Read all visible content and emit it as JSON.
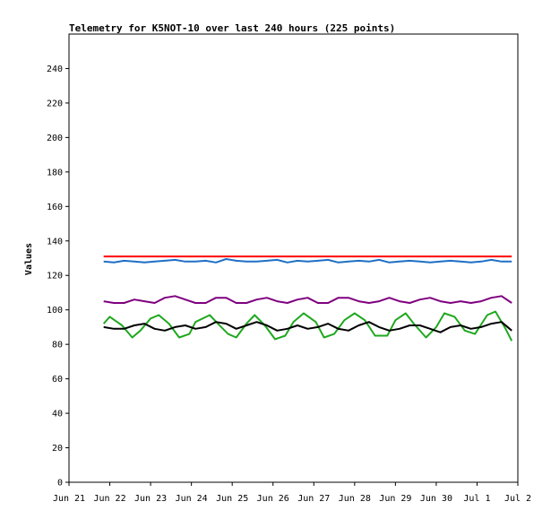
{
  "chart_data": {
    "type": "line",
    "title": "Telemetry for K5NOT-10 over last 240 hours (225 points)",
    "xlabel": "",
    "ylabel": "Values",
    "ylim": [
      0,
      260
    ],
    "yticks": [
      0,
      20,
      40,
      60,
      80,
      100,
      120,
      140,
      160,
      180,
      200,
      220,
      240
    ],
    "xlim": [
      0,
      11
    ],
    "xticks": [
      "Jun 21",
      "Jun 22",
      "Jun 23",
      "Jun 24",
      "Jun 25",
      "Jun 26",
      "Jun 27",
      "Jun 28",
      "Jun 29",
      "Jun 30",
      "Jul 1",
      "Jul 2"
    ],
    "grid": false,
    "legend": "none",
    "colors": {
      "red": "#ff0000",
      "blue": "#1f6fc5",
      "purple": "#7f007f",
      "green": "#1fa81f",
      "black": "#000000"
    },
    "series": [
      {
        "color": "#ff0000",
        "x": [
          0.85,
          1.5,
          2.2,
          2.6,
          3.0,
          3.5,
          4.0,
          4.6,
          5.0,
          5.5,
          6.0,
          6.5,
          7.0,
          7.5,
          8.0,
          8.5,
          9.0,
          9.5,
          10.0,
          10.5,
          10.85
        ],
        "values": [
          131,
          131,
          131,
          131,
          131,
          131,
          131,
          131,
          131,
          131,
          131,
          131,
          131,
          131,
          131,
          131,
          131,
          131,
          131,
          131,
          131
        ]
      },
      {
        "color": "#1f6fc5",
        "x": [
          0.85,
          1.1,
          1.35,
          1.6,
          1.85,
          2.1,
          2.35,
          2.6,
          2.85,
          3.1,
          3.35,
          3.6,
          3.85,
          4.1,
          4.35,
          4.6,
          4.85,
          5.1,
          5.35,
          5.6,
          5.85,
          6.1,
          6.35,
          6.6,
          6.85,
          7.1,
          7.35,
          7.6,
          7.85,
          8.1,
          8.35,
          8.6,
          8.85,
          9.1,
          9.35,
          9.6,
          9.85,
          10.1,
          10.35,
          10.6,
          10.85
        ],
        "values": [
          128,
          127.5,
          128.5,
          128,
          127.5,
          128,
          128.5,
          129,
          128,
          128,
          128.5,
          127.5,
          129.5,
          128.5,
          128,
          128,
          128.5,
          129,
          127.5,
          128.5,
          128,
          128.5,
          129,
          127.5,
          128,
          128.5,
          128,
          129,
          127.5,
          128,
          128.5,
          128,
          127.5,
          128,
          128.5,
          128,
          127.5,
          128,
          129,
          128,
          128
        ]
      },
      {
        "color": "#7f007f",
        "x": [
          0.85,
          1.1,
          1.35,
          1.6,
          1.85,
          2.1,
          2.35,
          2.6,
          2.85,
          3.1,
          3.35,
          3.6,
          3.85,
          4.1,
          4.35,
          4.6,
          4.85,
          5.1,
          5.35,
          5.6,
          5.85,
          6.1,
          6.35,
          6.6,
          6.85,
          7.1,
          7.35,
          7.6,
          7.85,
          8.1,
          8.35,
          8.6,
          8.85,
          9.1,
          9.35,
          9.6,
          9.85,
          10.1,
          10.35,
          10.6,
          10.85
        ],
        "values": [
          105,
          104,
          104,
          106,
          105,
          104,
          107,
          108,
          106,
          104,
          104,
          107,
          107,
          104,
          104,
          106,
          107,
          105,
          104,
          106,
          107,
          104,
          104,
          107,
          107,
          105,
          104,
          105,
          107,
          105,
          104,
          106,
          107,
          105,
          104,
          105,
          104,
          105,
          107,
          108,
          104
        ]
      },
      {
        "color": "#1fa81f",
        "x": [
          0.85,
          1.0,
          1.3,
          1.55,
          1.75,
          2.0,
          2.2,
          2.45,
          2.7,
          2.95,
          3.1,
          3.45,
          3.65,
          3.9,
          4.1,
          4.35,
          4.55,
          4.8,
          5.05,
          5.3,
          5.5,
          5.75,
          6.05,
          6.25,
          6.5,
          6.75,
          7.0,
          7.25,
          7.5,
          7.8,
          8.0,
          8.25,
          8.45,
          8.75,
          9.0,
          9.2,
          9.45,
          9.7,
          9.95,
          10.25,
          10.45,
          10.7,
          10.85
        ],
        "values": [
          92,
          96,
          91,
          84,
          88,
          95,
          97,
          92,
          84,
          86,
          93,
          97,
          92,
          86,
          84,
          92,
          97,
          91,
          83,
          85,
          93,
          98,
          93,
          84,
          86,
          94,
          98,
          94,
          85,
          85,
          94,
          98,
          92,
          84,
          90,
          98,
          96,
          88,
          86,
          97,
          99,
          89,
          82
        ]
      },
      {
        "color": "#000000",
        "x": [
          0.85,
          1.1,
          1.35,
          1.6,
          1.85,
          2.1,
          2.35,
          2.6,
          2.85,
          3.1,
          3.35,
          3.6,
          3.85,
          4.1,
          4.35,
          4.6,
          4.85,
          5.1,
          5.35,
          5.6,
          5.85,
          6.1,
          6.35,
          6.6,
          6.85,
          7.1,
          7.35,
          7.6,
          7.85,
          8.1,
          8.35,
          8.6,
          8.85,
          9.1,
          9.35,
          9.6,
          9.85,
          10.1,
          10.35,
          10.6,
          10.85
        ],
        "values": [
          90,
          89,
          89,
          91,
          92,
          89,
          88,
          90,
          91,
          89,
          90,
          93,
          92,
          89,
          91,
          93,
          91,
          88,
          89,
          91,
          89,
          90,
          92,
          89,
          88,
          91,
          93,
          90,
          88,
          89,
          91,
          91,
          89,
          87,
          90,
          91,
          89,
          90,
          92,
          93,
          88
        ]
      }
    ]
  }
}
